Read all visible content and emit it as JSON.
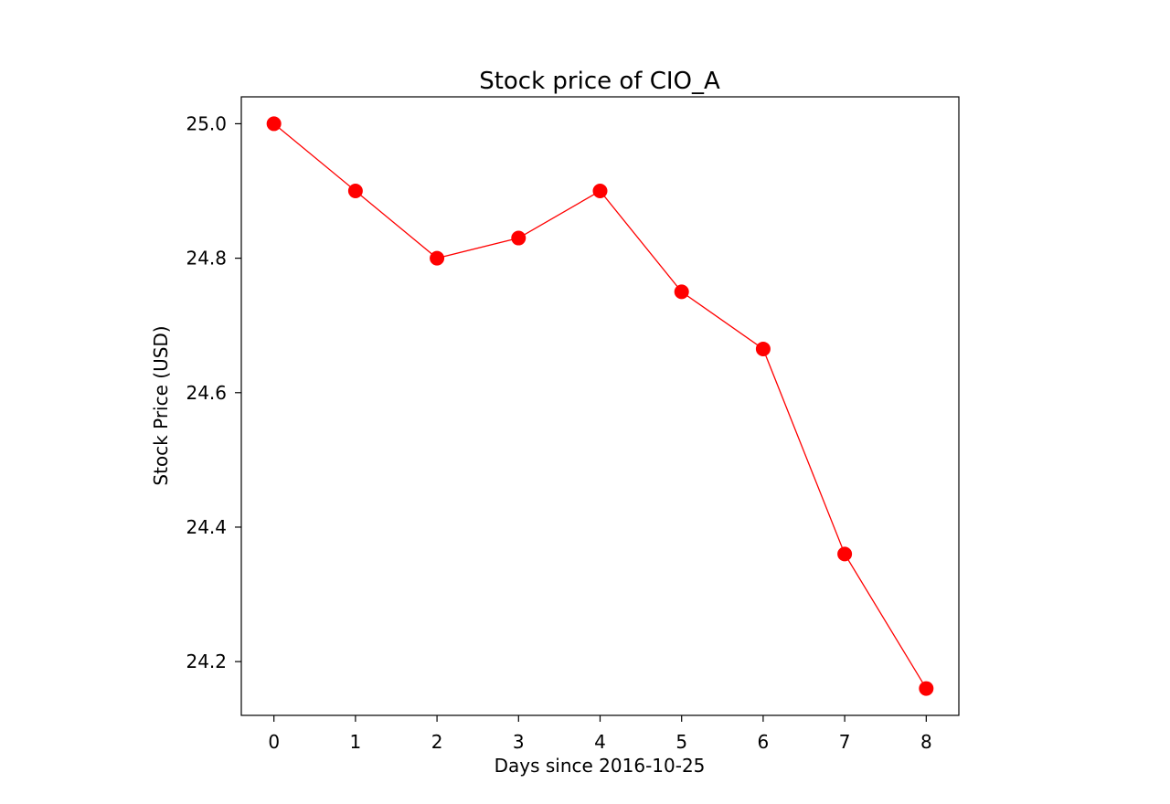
{
  "chart_data": {
    "type": "line",
    "title": "Stock price of CIO_A",
    "xlabel": "Days since 2016-10-25",
    "ylabel": "Stock Price (USD)",
    "x": [
      0,
      1,
      2,
      3,
      4,
      5,
      6,
      7,
      8
    ],
    "series": [
      {
        "values": [
          25.0,
          24.9,
          24.8,
          24.83,
          24.9,
          24.75,
          24.665,
          24.36,
          24.16
        ],
        "color": "#ff0000",
        "marker": "circle"
      }
    ],
    "xlim": [
      -0.4,
      8.4
    ],
    "ylim": [
      24.12,
      25.04
    ],
    "xticks": [
      0,
      1,
      2,
      3,
      4,
      5,
      6,
      7,
      8
    ],
    "yticks": [
      24.2,
      24.4,
      24.6,
      24.8,
      25.0
    ],
    "ytick_labels": [
      "24.2",
      "24.4",
      "24.6",
      "24.8",
      "25.0"
    ],
    "grid": false,
    "legend": "none"
  }
}
